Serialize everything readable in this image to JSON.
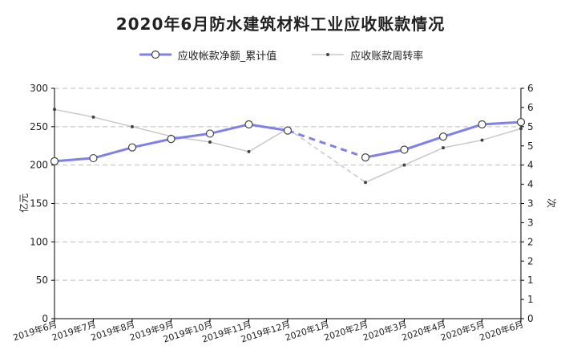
{
  "chart_data": {
    "type": "line",
    "title": "2020年6月防水建筑材料工业应收账款情况",
    "ylabel_left": "亿元",
    "ylabel_right": "次",
    "categories": [
      "2019年6月",
      "2019年7月",
      "2019年8月",
      "2019年9月",
      "2019年10月",
      "2019年11月",
      "2019年12月",
      "2020年1月",
      "2020年2月",
      "2020年3月",
      "2020年4月",
      "2020年5月",
      "2020年6月"
    ],
    "y_left_ticks": [
      "0",
      "50",
      "100",
      "150",
      "200",
      "250",
      "300"
    ],
    "y_right_ticks": [
      "0",
      "1",
      "1",
      "2",
      "2",
      "3",
      "3",
      "4",
      "4",
      "5",
      "5",
      "6",
      "6"
    ],
    "ylim_left": [
      0,
      300
    ],
    "ylim_right": [
      0,
      6
    ],
    "grid": true,
    "legend_position": "top",
    "series": [
      {
        "name": "应收帐款净额_累计值",
        "axis": "left",
        "color": "#8080e8",
        "values": [
          205,
          209,
          223,
          234,
          241,
          253,
          245,
          null,
          210,
          220,
          237,
          253,
          256
        ]
      },
      {
        "name": "应收账款周转率",
        "axis": "right",
        "color": "#c8c8c8",
        "values": [
          5.45,
          5.25,
          5.0,
          4.75,
          4.6,
          4.35,
          4.95,
          null,
          3.55,
          4.0,
          4.45,
          4.65,
          4.95
        ]
      }
    ]
  }
}
